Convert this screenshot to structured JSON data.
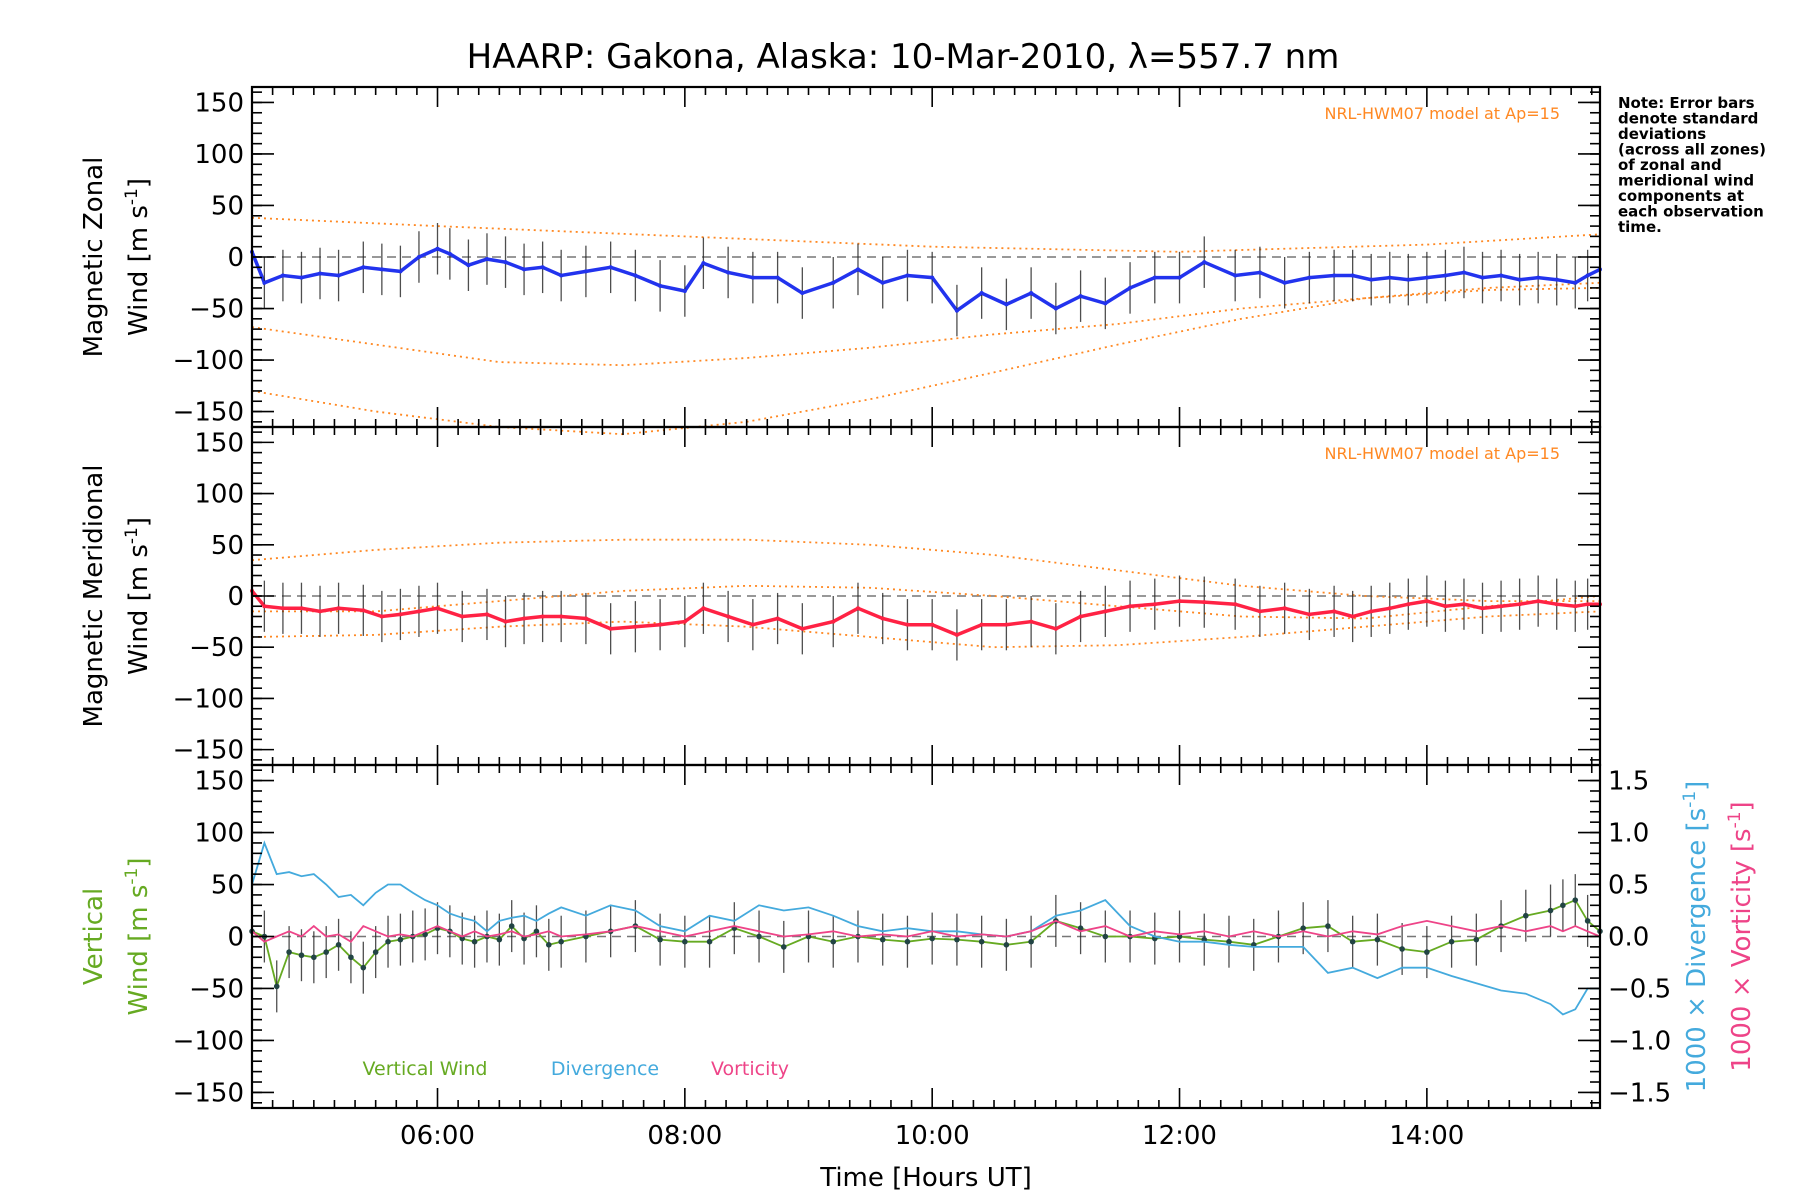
{
  "title": "HAARP: Gakona,  Alaska: 10-Mar-2010, λ=557.7 nm",
  "note": [
    "Note: Error bars",
    "denote standard",
    "deviations",
    "(across all zones)",
    "of zonal and",
    "meridional wind",
    "components at",
    "each observation",
    "time."
  ],
  "colors": {
    "zonal": "#2233ee",
    "meridional": "#ff2244",
    "vertical": "#66aa22",
    "divergence": "#44aadd",
    "vorticity": "#ee4488",
    "model": "#ff8822",
    "scatter": "#aaaaee"
  },
  "chart_data": [
    {
      "type": "line",
      "panel": "zonal",
      "ylabel_line1": "Magnetic Zonal",
      "ylabel_line2": "Wind [m s⁻¹]",
      "annotation": "NRL-HWM07 model at Ap=15",
      "xlim": [
        4.5,
        15.4
      ],
      "ylim": [
        -165,
        165
      ],
      "yticks": [
        -150,
        -100,
        -50,
        0,
        50,
        100,
        150
      ],
      "grid": false,
      "series": [
        {
          "role": "mean-wind",
          "x": [
            4.5,
            4.6,
            4.75,
            4.9,
            5.05,
            5.2,
            5.4,
            5.55,
            5.7,
            5.85,
            6.0,
            6.1,
            6.25,
            6.4,
            6.55,
            6.7,
            6.85,
            7.0,
            7.2,
            7.4,
            7.6,
            7.8,
            8.0,
            8.15,
            8.35,
            8.55,
            8.75,
            8.95,
            9.2,
            9.4,
            9.6,
            9.8,
            10.0,
            10.2,
            10.4,
            10.6,
            10.8,
            11.0,
            11.2,
            11.4,
            11.6,
            11.8,
            12.0,
            12.2,
            12.45,
            12.65,
            12.85,
            13.05,
            13.25,
            13.4,
            13.55,
            13.7,
            13.85,
            14.0,
            14.15,
            14.3,
            14.45,
            14.6,
            14.75,
            14.9,
            15.05,
            15.2,
            15.3,
            15.4
          ],
          "y": [
            5,
            -25,
            -18,
            -20,
            -16,
            -18,
            -10,
            -12,
            -14,
            0,
            8,
            3,
            -8,
            -2,
            -5,
            -12,
            -10,
            -18,
            -14,
            -10,
            -18,
            -28,
            -33,
            -6,
            -15,
            -20,
            -20,
            -35,
            -25,
            -12,
            -25,
            -18,
            -20,
            -52,
            -35,
            -46,
            -35,
            -50,
            -38,
            -45,
            -30,
            -20,
            -20,
            -5,
            -18,
            -15,
            -25,
            -20,
            -18,
            -18,
            -22,
            -20,
            -22,
            -20,
            -18,
            -15,
            -20,
            -18,
            -22,
            -20,
            -22,
            -25,
            -18,
            -12
          ]
        },
        {
          "role": "model-upper",
          "x": [
            4.5,
            6.0,
            8.0,
            10.0,
            12.0,
            14.0,
            15.4
          ],
          "y": [
            38,
            30,
            20,
            10,
            5,
            12,
            22
          ]
        },
        {
          "role": "model-mid",
          "x": [
            4.5,
            5.5,
            6.5,
            7.5,
            8.5,
            9.5,
            10.5,
            11.5,
            12.5,
            13.5,
            14.5,
            15.4
          ],
          "y": [
            -68,
            -85,
            -102,
            -105,
            -98,
            -88,
            -75,
            -65,
            -50,
            -40,
            -32,
            -30
          ]
        },
        {
          "role": "model-lower",
          "x": [
            4.5,
            5.5,
            6.5,
            7.5,
            8.5,
            9.5,
            10.5,
            11.5,
            12.5,
            13.5,
            14.5,
            15.4
          ],
          "y": [
            -130,
            -150,
            -165,
            -172,
            -160,
            -138,
            -112,
            -85,
            -60,
            -40,
            -30,
            -25
          ]
        }
      ]
    },
    {
      "type": "line",
      "panel": "meridional",
      "ylabel_line1": "Magnetic Meridional",
      "ylabel_line2": "Wind [m s⁻¹]",
      "annotation": "NRL-HWM07 model at Ap=15",
      "xlim": [
        4.5,
        15.4
      ],
      "ylim": [
        -165,
        165
      ],
      "yticks": [
        -150,
        -100,
        -50,
        0,
        50,
        100,
        150
      ],
      "grid": false,
      "series": [
        {
          "role": "mean-wind",
          "x": [
            4.5,
            4.6,
            4.75,
            4.9,
            5.05,
            5.2,
            5.4,
            5.55,
            5.7,
            5.85,
            6.0,
            6.2,
            6.4,
            6.55,
            6.7,
            6.85,
            7.0,
            7.2,
            7.4,
            7.6,
            7.8,
            8.0,
            8.15,
            8.35,
            8.55,
            8.75,
            8.95,
            9.2,
            9.4,
            9.6,
            9.8,
            10.0,
            10.2,
            10.4,
            10.6,
            10.8,
            11.0,
            11.2,
            11.4,
            11.6,
            11.8,
            12.0,
            12.2,
            12.45,
            12.65,
            12.85,
            13.05,
            13.25,
            13.4,
            13.55,
            13.7,
            13.85,
            14.0,
            14.15,
            14.3,
            14.45,
            14.6,
            14.75,
            14.9,
            15.05,
            15.2,
            15.3,
            15.4
          ],
          "y": [
            5,
            -10,
            -12,
            -12,
            -15,
            -12,
            -14,
            -20,
            -18,
            -15,
            -12,
            -20,
            -18,
            -25,
            -22,
            -20,
            -20,
            -22,
            -32,
            -30,
            -28,
            -25,
            -12,
            -20,
            -28,
            -22,
            -32,
            -25,
            -12,
            -22,
            -28,
            -28,
            -38,
            -28,
            -28,
            -25,
            -32,
            -20,
            -15,
            -10,
            -8,
            -5,
            -6,
            -8,
            -15,
            -12,
            -18,
            -15,
            -20,
            -15,
            -12,
            -8,
            -5,
            -10,
            -8,
            -12,
            -10,
            -8,
            -5,
            -8,
            -10,
            -8,
            -8
          ]
        },
        {
          "role": "model-upper",
          "x": [
            4.5,
            5.5,
            6.5,
            7.5,
            8.5,
            9.5,
            10.5,
            11.5,
            12.5,
            13.5,
            14.5,
            15.4
          ],
          "y": [
            35,
            45,
            52,
            55,
            55,
            50,
            40,
            25,
            10,
            0,
            -5,
            -5
          ]
        },
        {
          "role": "model-mid",
          "x": [
            4.5,
            5.5,
            6.5,
            7.5,
            8.5,
            9.5,
            10.5,
            11.5,
            12.5,
            13.5,
            14.5,
            15.4
          ],
          "y": [
            -15,
            -15,
            -5,
            5,
            10,
            8,
            0,
            -10,
            -20,
            -22,
            -10,
            0
          ]
        },
        {
          "role": "model-lower",
          "x": [
            4.5,
            5.5,
            6.5,
            7.5,
            8.5,
            9.5,
            10.5,
            11.5,
            12.5,
            13.5,
            14.5,
            15.4
          ],
          "y": [
            -40,
            -38,
            -30,
            -25,
            -30,
            -40,
            -50,
            -48,
            -40,
            -30,
            -20,
            -15
          ]
        }
      ]
    },
    {
      "type": "line",
      "panel": "vertical",
      "ylabel_line1": "Vertical",
      "ylabel_line2": "Wind [m s⁻¹]",
      "right_ylabel1": "1000 × Divergence [s⁻¹]",
      "right_ylabel2": "1000 × Vorticity [s⁻¹]",
      "xlabel": "Time [Hours UT]",
      "xticks": [
        6,
        8,
        10,
        12,
        14
      ],
      "xticklabels": [
        "06:00",
        "08:00",
        "10:00",
        "12:00",
        "14:00"
      ],
      "xlim": [
        4.5,
        15.4
      ],
      "ylim": [
        -165,
        165
      ],
      "yticks": [
        -150,
        -100,
        -50,
        0,
        50,
        100,
        150
      ],
      "ylim_right": [
        -1.65,
        1.65
      ],
      "yticks_right": [
        -1.5,
        -1.0,
        -0.5,
        0.0,
        0.5,
        1.0,
        1.5
      ],
      "yticklabels_right": [
        "−1.5",
        "−1.0",
        "−0.5",
        "0.0",
        "0.5",
        "1.0",
        "1.5"
      ],
      "legend": [
        "Vertical Wind",
        "Divergence",
        "Vorticity"
      ],
      "grid": false,
      "series": [
        {
          "name": "Vertical Wind",
          "axis": "left",
          "x": [
            4.5,
            4.6,
            4.7,
            4.8,
            4.9,
            5.0,
            5.1,
            5.2,
            5.3,
            5.4,
            5.5,
            5.6,
            5.7,
            5.8,
            5.9,
            6.0,
            6.1,
            6.2,
            6.3,
            6.4,
            6.5,
            6.6,
            6.7,
            6.8,
            6.9,
            7.0,
            7.2,
            7.4,
            7.6,
            7.8,
            8.0,
            8.2,
            8.4,
            8.6,
            8.8,
            9.0,
            9.2,
            9.4,
            9.6,
            9.8,
            10.0,
            10.2,
            10.4,
            10.6,
            10.8,
            11.0,
            11.2,
            11.4,
            11.6,
            11.8,
            12.0,
            12.2,
            12.4,
            12.6,
            12.8,
            13.0,
            13.2,
            13.4,
            13.6,
            13.8,
            14.0,
            14.2,
            14.4,
            14.6,
            14.8,
            15.0,
            15.1,
            15.2,
            15.3,
            15.4
          ],
          "y": [
            5,
            0,
            -48,
            -15,
            -18,
            -20,
            -15,
            -8,
            -20,
            -30,
            -15,
            -5,
            -3,
            0,
            2,
            8,
            5,
            -2,
            -5,
            0,
            -3,
            10,
            -2,
            5,
            -8,
            -5,
            0,
            5,
            10,
            -3,
            -5,
            -5,
            8,
            0,
            -10,
            0,
            -5,
            0,
            -3,
            -5,
            -2,
            -3,
            -5,
            -8,
            -5,
            15,
            8,
            0,
            0,
            -2,
            0,
            -3,
            -5,
            -8,
            0,
            8,
            10,
            -5,
            -3,
            -12,
            -15,
            -5,
            -3,
            10,
            20,
            25,
            30,
            35,
            15,
            5
          ]
        },
        {
          "name": "Divergence",
          "axis": "right",
          "x": [
            4.5,
            4.6,
            4.7,
            4.8,
            4.9,
            5.0,
            5.1,
            5.2,
            5.3,
            5.4,
            5.5,
            5.6,
            5.7,
            5.8,
            5.9,
            6.0,
            6.1,
            6.2,
            6.3,
            6.4,
            6.5,
            6.6,
            6.7,
            6.8,
            6.9,
            7.0,
            7.2,
            7.4,
            7.6,
            7.8,
            8.0,
            8.2,
            8.4,
            8.6,
            8.8,
            9.0,
            9.2,
            9.4,
            9.6,
            9.8,
            10.0,
            10.2,
            10.4,
            10.6,
            10.8,
            11.0,
            11.2,
            11.4,
            11.6,
            11.8,
            12.0,
            12.2,
            12.4,
            12.6,
            12.8,
            13.0,
            13.2,
            13.4,
            13.6,
            13.8,
            14.0,
            14.2,
            14.4,
            14.6,
            14.8,
            15.0,
            15.1,
            15.2,
            15.3,
            15.4
          ],
          "y": [
            0.5,
            0.9,
            0.6,
            0.62,
            0.58,
            0.6,
            0.5,
            0.38,
            0.4,
            0.3,
            0.42,
            0.5,
            0.5,
            0.42,
            0.35,
            0.3,
            0.22,
            0.18,
            0.15,
            0.05,
            0.15,
            0.18,
            0.2,
            0.15,
            0.22,
            0.28,
            0.2,
            0.3,
            0.25,
            0.1,
            0.05,
            0.2,
            0.15,
            0.3,
            0.25,
            0.28,
            0.2,
            0.1,
            0.05,
            0.08,
            0.05,
            0.05,
            0.02,
            0.0,
            0.05,
            0.2,
            0.25,
            0.35,
            0.1,
            0.0,
            -0.05,
            -0.05,
            -0.08,
            -0.1,
            -0.1,
            -0.1,
            -0.35,
            -0.3,
            -0.4,
            -0.3,
            -0.3,
            -0.38,
            -0.45,
            -0.52,
            -0.55,
            -0.65,
            -0.75,
            -0.7,
            -0.5,
            -0.5
          ]
        },
        {
          "name": "Vorticity",
          "axis": "right",
          "x": [
            4.5,
            4.6,
            4.7,
            4.8,
            4.9,
            5.0,
            5.1,
            5.2,
            5.3,
            5.4,
            5.5,
            5.6,
            5.7,
            5.8,
            5.9,
            6.0,
            6.1,
            6.2,
            6.3,
            6.4,
            6.5,
            6.6,
            6.7,
            6.8,
            6.9,
            7.0,
            7.2,
            7.4,
            7.6,
            7.8,
            8.0,
            8.2,
            8.4,
            8.6,
            8.8,
            9.0,
            9.2,
            9.4,
            9.6,
            9.8,
            10.0,
            10.2,
            10.4,
            10.6,
            10.8,
            11.0,
            11.2,
            11.4,
            11.6,
            11.8,
            12.0,
            12.2,
            12.4,
            12.6,
            12.8,
            13.0,
            13.2,
            13.4,
            13.6,
            13.8,
            14.0,
            14.2,
            14.4,
            14.6,
            14.8,
            15.0,
            15.1,
            15.2,
            15.3,
            15.4
          ],
          "y": [
            0.05,
            -0.05,
            0.0,
            0.05,
            0.0,
            0.1,
            0.0,
            0.02,
            -0.05,
            0.1,
            0.05,
            0.0,
            0.02,
            0.0,
            0.05,
            0.1,
            0.05,
            0.0,
            0.05,
            0.0,
            0.02,
            0.05,
            0.0,
            0.02,
            0.05,
            0.0,
            0.02,
            0.05,
            0.1,
            0.05,
            0.0,
            0.05,
            0.1,
            0.05,
            0.0,
            0.02,
            0.05,
            0.0,
            0.02,
            0.0,
            0.05,
            0.0,
            0.02,
            0.0,
            0.05,
            0.15,
            0.05,
            0.1,
            0.0,
            0.05,
            0.02,
            0.05,
            0.0,
            0.05,
            0.0,
            0.05,
            0.0,
            0.05,
            0.02,
            0.1,
            0.15,
            0.1,
            0.05,
            0.1,
            0.05,
            0.1,
            0.05,
            0.1,
            0.05,
            0.0
          ]
        }
      ]
    }
  ]
}
